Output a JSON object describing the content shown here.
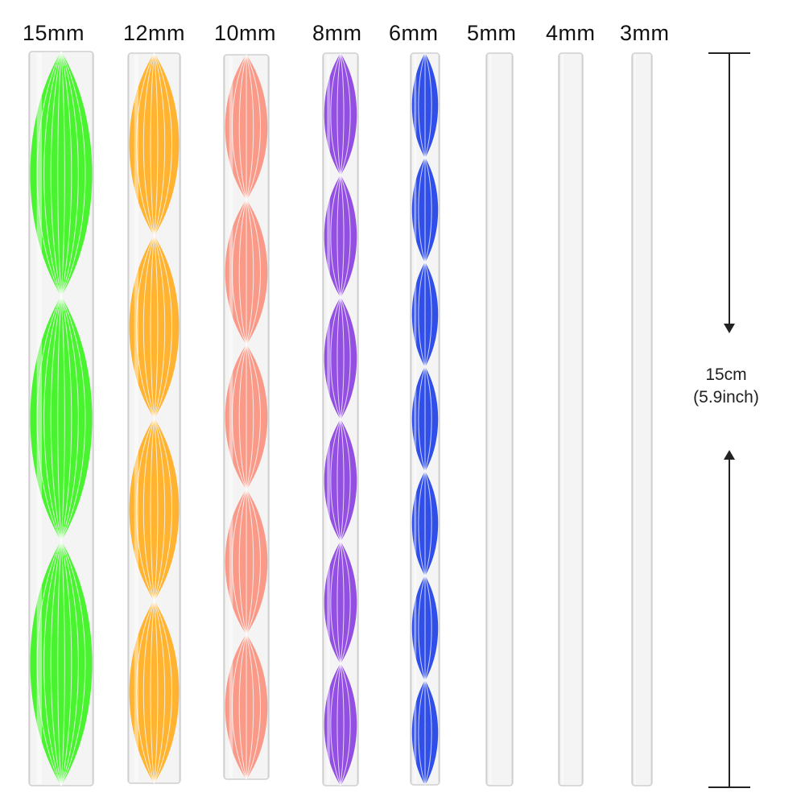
{
  "rods": [
    {
      "label": "15mm",
      "diameter_mm": 15,
      "twist_color": "#39f21d",
      "twist_periods": 3,
      "patterned": true
    },
    {
      "label": "12mm",
      "diameter_mm": 12,
      "twist_color": "#ffad1f",
      "twist_periods": 4,
      "patterned": true
    },
    {
      "label": "10mm",
      "diameter_mm": 10,
      "twist_color": "#f9917f",
      "twist_periods": 5,
      "patterned": true
    },
    {
      "label": "8mm",
      "diameter_mm": 8,
      "twist_color": "#8a3fe0",
      "twist_periods": 6,
      "patterned": true
    },
    {
      "label": "6mm",
      "diameter_mm": 6,
      "twist_color": "#1e3fe8",
      "twist_periods": 7,
      "patterned": true
    },
    {
      "label": "5mm",
      "diameter_mm": 5,
      "twist_color": "#dcdcdc",
      "twist_periods": 0,
      "patterned": false
    },
    {
      "label": "4mm",
      "diameter_mm": 4,
      "twist_color": "#dcdcdc",
      "twist_periods": 0,
      "patterned": false
    },
    {
      "label": "3mm",
      "diameter_mm": 3,
      "twist_color": "#dcdcdc",
      "twist_periods": 0,
      "patterned": false
    }
  ],
  "dimension": {
    "value": "15cm",
    "alt_value": "(5.9inch)",
    "line_color": "#222222"
  },
  "colors": {
    "background": "#ffffff",
    "rod_body": "#f4f4f4",
    "rod_edge": "#c8c8c8",
    "label_text": "#111111"
  }
}
